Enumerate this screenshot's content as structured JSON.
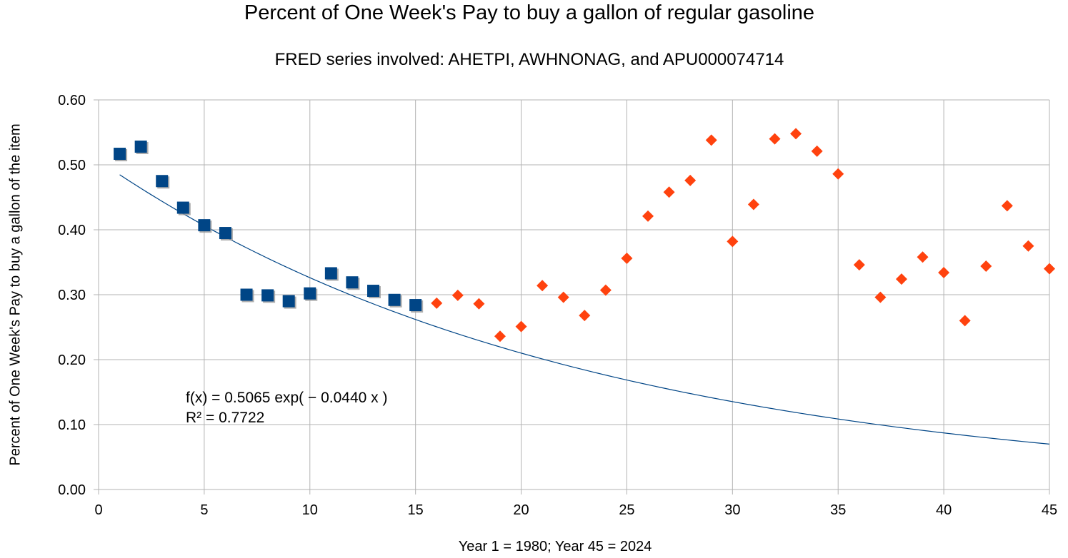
{
  "chart_data": {
    "type": "scatter",
    "title": "Percent of One Week's Pay to buy a gallon of regular gasoline",
    "subtitle": "FRED series involved: AHETPI, AWHNONAG, and APU000074714",
    "xlabel": "Year 1 = 1980; Year 45 = 2024",
    "ylabel": "Percent of One Week's Pay to buy a gallon of the item",
    "xlim": [
      0,
      45
    ],
    "ylim": [
      0,
      0.6
    ],
    "x_ticks": [
      0,
      5,
      10,
      15,
      20,
      25,
      30,
      35,
      40,
      45
    ],
    "y_ticks": [
      0,
      0.1,
      0.2,
      0.3,
      0.4,
      0.5,
      0.6
    ],
    "y_tick_labels": [
      "0.00",
      "0.10",
      "0.20",
      "0.30",
      "0.40",
      "0.50",
      "0.60"
    ],
    "grid": true,
    "series": [
      {
        "marker": "square",
        "color": "#004586",
        "x": [
          1,
          2,
          3,
          4,
          5,
          6,
          7,
          8,
          9,
          10,
          11,
          12,
          13,
          14,
          15
        ],
        "y": [
          0.517,
          0.528,
          0.475,
          0.434,
          0.407,
          0.395,
          0.3,
          0.299,
          0.29,
          0.302,
          0.333,
          0.319,
          0.306,
          0.292,
          0.284
        ]
      },
      {
        "marker": "diamond",
        "color": "#ff420e",
        "x": [
          16,
          17,
          18,
          19,
          20,
          21,
          22,
          23,
          24,
          25,
          26,
          27,
          28,
          29,
          30,
          31,
          32,
          33,
          34,
          35,
          36,
          37,
          38,
          39,
          40,
          41,
          42,
          43,
          44,
          45
        ],
        "y": [
          0.287,
          0.299,
          0.286,
          0.236,
          0.251,
          0.314,
          0.296,
          0.268,
          0.307,
          0.356,
          0.421,
          0.458,
          0.476,
          0.538,
          0.382,
          0.439,
          0.54,
          0.548,
          0.521,
          0.486,
          0.346,
          0.296,
          0.324,
          0.358,
          0.334,
          0.26,
          0.344,
          0.437,
          0.375,
          0.34
        ]
      }
    ],
    "trendline": {
      "type": "exponential",
      "a": 0.5065,
      "b": -0.044,
      "x_range": [
        1,
        45
      ],
      "color": "#004586",
      "equation_text": "f(x) = 0.5065 exp( − 0.0440 x )",
      "r2_text": "R² = 0.7722"
    }
  }
}
